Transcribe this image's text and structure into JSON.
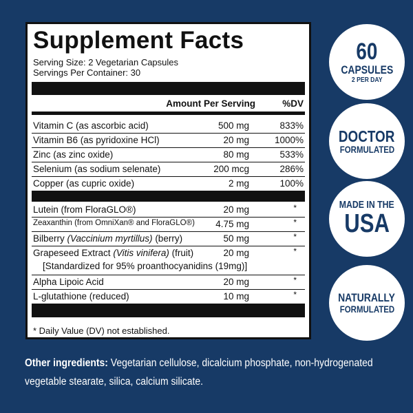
{
  "facts": {
    "title": "Supplement Facts",
    "serving_size": "Serving Size: 2 Vegetarian Capsules",
    "servings_per_container": "Servings Per Container: 30",
    "header": {
      "amount": "Amount Per Serving",
      "dv": "%DV"
    },
    "groups": [
      [
        {
          "name": "Vitamin C (as ascorbic acid)",
          "amount": "500 mg",
          "dv": "833%"
        },
        {
          "name": "Vitamin B6 (as pyridoxine HCl)",
          "amount": "20 mg",
          "dv": "1000%"
        },
        {
          "name": "Zinc (as zinc oxide)",
          "amount": "80 mg",
          "dv": "533%"
        },
        {
          "name": "Selenium (as sodium selenate)",
          "amount": "200 mcg",
          "dv": "286%"
        },
        {
          "name": "Copper (as cupric oxide)",
          "amount": "2 mg",
          "dv": "100%"
        }
      ],
      [
        {
          "name": "Lutein (from FloraGLO®)",
          "amount": "20 mg",
          "dv": "*"
        },
        {
          "name": "Zeaxanthin (from OmniXan® and FloraGLO®)",
          "amount": "4.75 mg",
          "dv": "*",
          "small": true
        },
        {
          "name": "Bilberry",
          "italic": "(Vaccinium myrtillus)",
          "post": "(berry)",
          "amount": "50 mg",
          "dv": "*"
        },
        {
          "name": "Grapeseed Extract",
          "italic": "(Vitis vinifera)",
          "post": "(fruit)",
          "amount": "20 mg",
          "dv": "*",
          "note": "[Standardized for 95% proanthocyanidins (19mg)]"
        },
        {
          "name": "Alpha Lipoic Acid",
          "amount": "20 mg",
          "dv": "*"
        },
        {
          "name": "L-glutathione (reduced)",
          "amount": "10 mg",
          "dv": "*"
        }
      ]
    ],
    "footnote": "* Daily Value (DV) not established."
  },
  "other_ingredients": {
    "label": "Other ingredients:",
    "text": "Vegetarian cellulose, dicalcium phosphate, non-hydrogenated vegetable stearate, silica, calcium silicate."
  },
  "badges": [
    {
      "lines": [
        "60",
        "CAPSULES",
        "2 PER DAY"
      ]
    },
    {
      "lines": [
        "DOCTOR",
        "FORMULATED"
      ]
    },
    {
      "lines": [
        "MADE IN THE",
        "USA"
      ]
    },
    {
      "lines": [
        "NATURALLY",
        "FORMULATED"
      ]
    }
  ]
}
